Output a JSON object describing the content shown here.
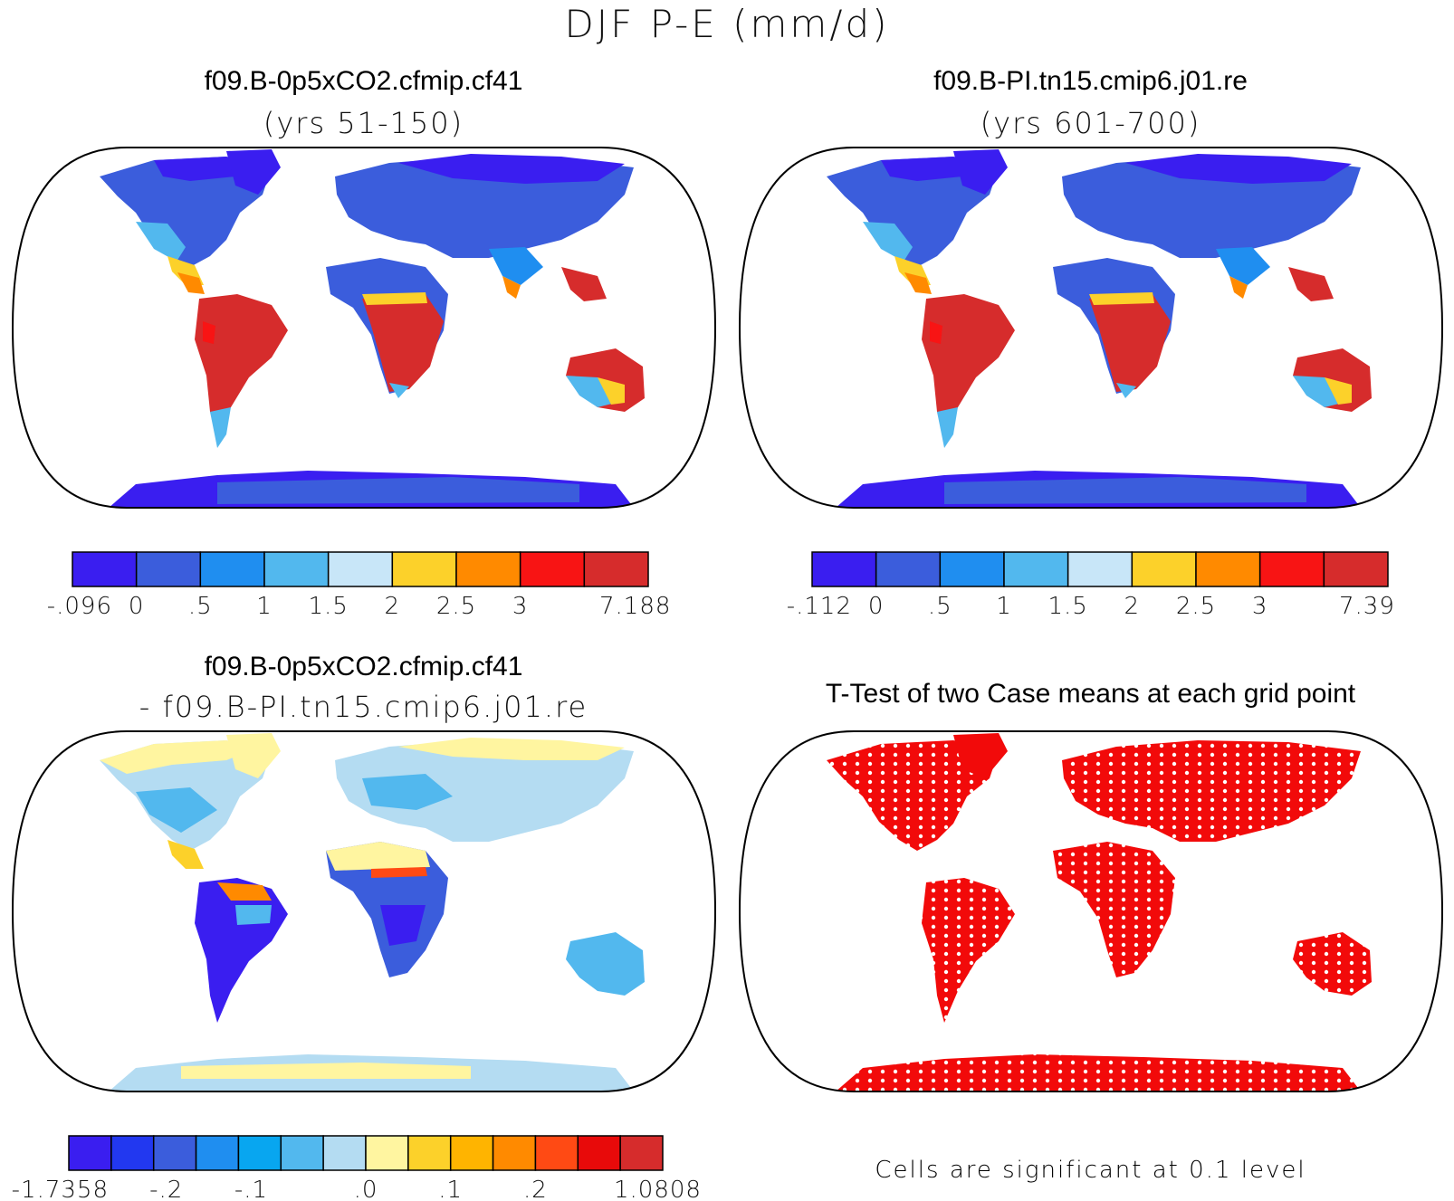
{
  "figure": {
    "title": "DJF P-E (mm/d)"
  },
  "panels": [
    {
      "id": "case",
      "title": "f09.B-0p5xCO2.cfmip.cf41",
      "subtitle": "(yrs 51-150)",
      "colorbar": {
        "colors": [
          "#3a1ef0",
          "#3b5ddc",
          "#1f8ef0",
          "#52b8ee",
          "#c8e6f8",
          "#fcd12a",
          "#ff8a00",
          "#f81414",
          "#d62c2c"
        ],
        "labels": [
          "-.096",
          "0",
          ".5",
          "1",
          "1.5",
          "2",
          "2.5",
          "3",
          "7.188"
        ]
      }
    },
    {
      "id": "control",
      "title": "f09.B-PI.tn15.cmip6.j01.re",
      "subtitle": "(yrs 601-700)",
      "colorbar": {
        "colors": [
          "#3a1ef0",
          "#3b5ddc",
          "#1f8ef0",
          "#52b8ee",
          "#c8e6f8",
          "#fcd12a",
          "#ff8a00",
          "#f81414",
          "#d62c2c"
        ],
        "labels": [
          "-.112",
          "0",
          ".5",
          "1",
          "1.5",
          "2",
          "2.5",
          "3",
          "7.39"
        ]
      }
    },
    {
      "id": "difference",
      "title": "f09.B-0p5xCO2.cfmip.cf41",
      "subtitle": "- f09.B-PI.tn15.cmip6.j01.re",
      "colorbar": {
        "colors": [
          "#3a1ef0",
          "#2238f0",
          "#3b5ddc",
          "#1f8ef0",
          "#08a6f0",
          "#52b8ee",
          "#b4dcf2",
          "#fff5a0",
          "#fcd12a",
          "#ffb400",
          "#ff8a00",
          "#ff4a14",
          "#e80a0a",
          "#d62c2c"
        ],
        "labels": [
          "-1.7358",
          "-.2",
          "-.1",
          ".0",
          ".1",
          ".2",
          "1.0808"
        ]
      }
    },
    {
      "id": "ttest",
      "title": "T-Test of two Case means at each grid point",
      "note": "Cells are significant at 0.1 level"
    }
  ]
}
